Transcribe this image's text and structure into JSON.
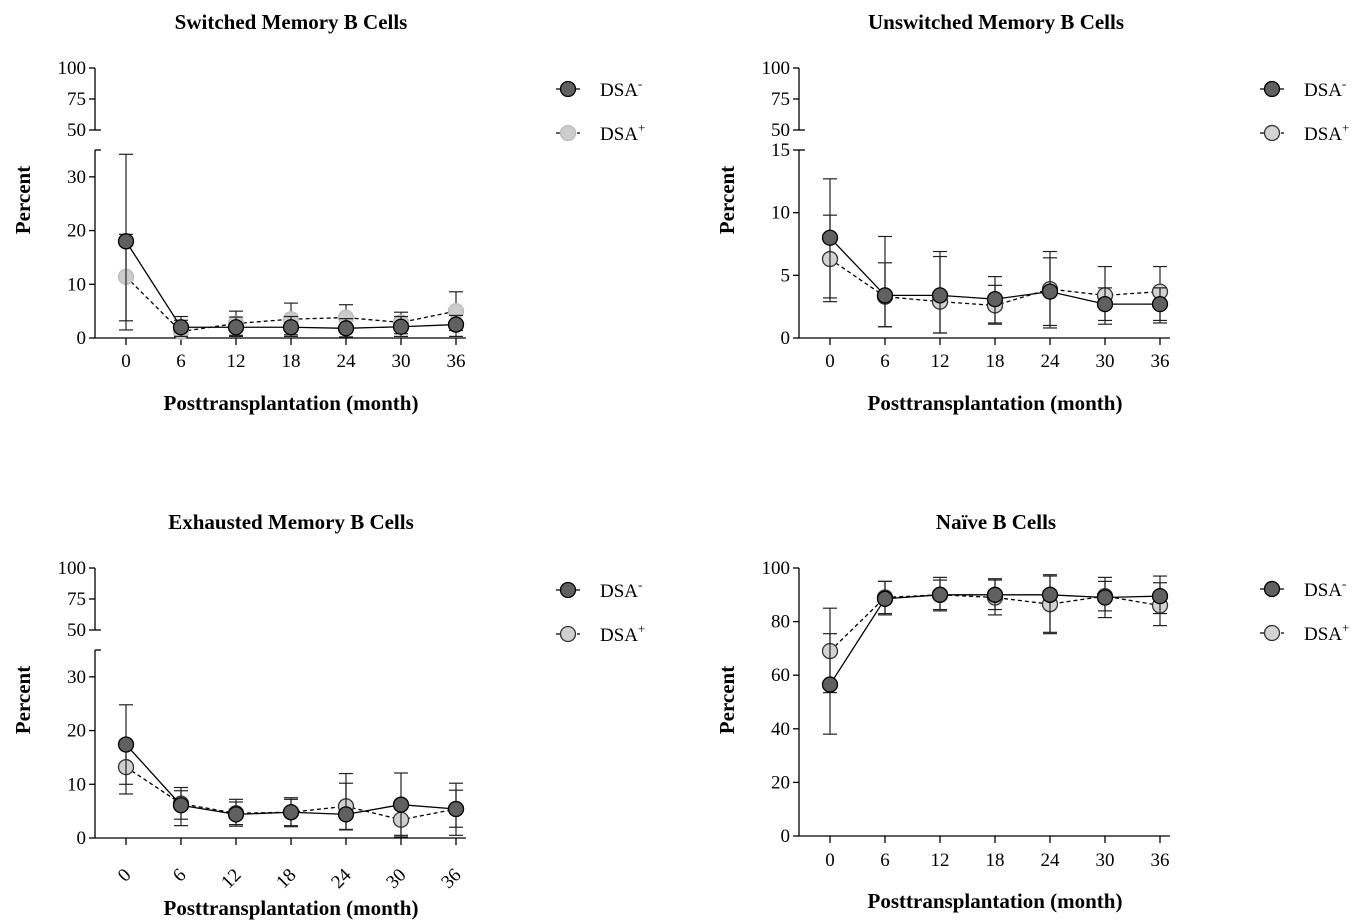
{
  "chart_data": [
    {
      "type": "line",
      "title": "Switched Memory B Cells",
      "xlabel": "Posttransplantation (month)",
      "ylabel": "Percent",
      "x": [
        0,
        6,
        12,
        18,
        24,
        30,
        36
      ],
      "xticklabels": [
        "0",
        "6",
        "12",
        "18",
        "24",
        "30",
        "36"
      ],
      "xtick_rotated": false,
      "y_axis_broken": true,
      "ylim_lower": [
        0,
        35
      ],
      "ylim_upper": [
        50,
        100
      ],
      "yticks_lower": [
        0,
        10,
        20,
        30
      ],
      "yticks_upper": [
        50,
        75,
        100
      ],
      "legend_position": "right",
      "series": [
        {
          "name": "DSA-",
          "name_base": "DSA",
          "name_sup": "-",
          "color": "#606060",
          "line": "solid",
          "values": [
            18.0,
            2.0,
            2.0,
            2.0,
            1.8,
            2.1,
            2.5
          ],
          "error": [
            [
              3.2,
              34.2
            ],
            [
              0.3,
              4.0
            ],
            [
              0.3,
              3.9
            ],
            [
              0.3,
              4.0
            ],
            [
              0.2,
              3.6
            ],
            [
              0.3,
              4.0
            ],
            [
              0.3,
              4.2
            ]
          ]
        },
        {
          "name": "DSA+",
          "name_base": "DSA",
          "name_sup": "+",
          "color": "#cccccc",
          "line": "dashed",
          "values": [
            11.4,
            1.2,
            2.7,
            3.5,
            3.8,
            2.9,
            5.0
          ],
          "error": [
            [
              1.5,
              19.3
            ],
            [
              0.2,
              3.3
            ],
            [
              0.5,
              5.0
            ],
            [
              0.6,
              6.5
            ],
            [
              1.2,
              6.2
            ],
            [
              0.8,
              4.8
            ],
            [
              1.4,
              8.6
            ]
          ]
        }
      ]
    },
    {
      "type": "line",
      "title": "Unswitched Memory B Cells",
      "xlabel": "Posttransplantation (month)",
      "ylabel": "Percent",
      "x": [
        0,
        6,
        12,
        18,
        24,
        30,
        36
      ],
      "xticklabels": [
        "0",
        "6",
        "12",
        "18",
        "24",
        "30",
        "36"
      ],
      "xtick_rotated": false,
      "y_axis_broken": true,
      "ylim_lower": [
        0,
        15
      ],
      "ylim_upper": [
        50,
        100
      ],
      "yticks_lower": [
        0,
        5,
        10,
        15
      ],
      "yticks_upper": [
        50,
        75,
        100
      ],
      "legend_position": "right",
      "series": [
        {
          "name": "DSA-",
          "name_base": "DSA",
          "name_sup": "-",
          "color": "#606060",
          "line": "solid",
          "values": [
            8.0,
            3.4,
            3.4,
            3.1,
            3.7,
            2.7,
            2.7
          ],
          "error": [
            [
              3.2,
              12.7
            ],
            [
              0.9,
              6.0
            ],
            [
              0.4,
              6.9
            ],
            [
              1.2,
              4.9
            ],
            [
              1.0,
              6.4
            ],
            [
              1.4,
              4.0
            ],
            [
              1.4,
              4.0
            ]
          ]
        },
        {
          "name": "DSA+",
          "name_base": "DSA",
          "name_sup": "+",
          "color": "#d3d3d3",
          "line": "dashed",
          "values": [
            6.3,
            3.3,
            2.9,
            2.6,
            3.9,
            3.4,
            3.7
          ],
          "error": [
            [
              2.9,
              9.8
            ],
            [
              0.9,
              8.1
            ],
            [
              0.4,
              6.5
            ],
            [
              1.1,
              4.2
            ],
            [
              0.8,
              6.9
            ],
            [
              1.1,
              5.7
            ],
            [
              1.2,
              5.7
            ]
          ]
        }
      ]
    },
    {
      "type": "line",
      "title": "Exhausted Memory B Cells",
      "xlabel": "Posttransplantation (month)",
      "ylabel": "Percent",
      "x": [
        0,
        6,
        12,
        18,
        24,
        30,
        36
      ],
      "xticklabels": [
        "0",
        "6",
        "12",
        "18",
        "24",
        "30",
        "36"
      ],
      "xtick_rotated": true,
      "y_axis_broken": true,
      "ylim_lower": [
        0,
        35
      ],
      "ylim_upper": [
        50,
        100
      ],
      "yticks_lower": [
        0,
        10,
        20,
        30
      ],
      "yticks_upper": [
        50,
        75,
        100
      ],
      "legend_position": "right",
      "series": [
        {
          "name": "DSA-",
          "name_base": "DSA",
          "name_sup": "-",
          "color": "#606060",
          "line": "solid",
          "values": [
            17.4,
            6.1,
            4.4,
            4.8,
            4.4,
            6.2,
            5.4
          ],
          "error": [
            [
              10.0,
              24.8
            ],
            [
              3.5,
              8.8
            ],
            [
              2.2,
              6.7
            ],
            [
              2.3,
              7.2
            ],
            [
              1.5,
              12.0
            ],
            [
              0.5,
              12.1
            ],
            [
              0.5,
              10.2
            ]
          ]
        },
        {
          "name": "DSA+",
          "name_base": "DSA",
          "name_sup": "+",
          "color": "#d0d0d0",
          "line": "dashed",
          "values": [
            13.2,
            6.4,
            4.6,
            4.8,
            5.9,
            3.4,
            5.4
          ],
          "error": [
            [
              8.2,
              18.2
            ],
            [
              2.3,
              9.4
            ],
            [
              2.5,
              7.2
            ],
            [
              2.1,
              7.5
            ],
            [
              1.6,
              10.2
            ],
            [
              0.2,
              6.8
            ],
            [
              2.0,
              8.9
            ]
          ]
        }
      ]
    },
    {
      "type": "line",
      "title": "Naïve B Cells",
      "xlabel": "Posttransplantation (month)",
      "ylabel": "Percent",
      "x": [
        0,
        6,
        12,
        18,
        24,
        30,
        36
      ],
      "xticklabels": [
        "0",
        "6",
        "12",
        "18",
        "24",
        "30",
        "36"
      ],
      "xtick_rotated": false,
      "y_axis_broken": false,
      "ylim": [
        0,
        100
      ],
      "yticks": [
        0,
        20,
        40,
        60,
        80,
        100
      ],
      "legend_position": "right",
      "series": [
        {
          "name": "DSA-",
          "name_base": "DSA",
          "name_sup": "-",
          "color": "#606060",
          "line": "solid",
          "values": [
            56.5,
            88.5,
            90.0,
            90.0,
            90.0,
            89.0,
            89.5
          ],
          "error": [
            [
              38.0,
              75.5
            ],
            [
              82.5,
              95.0
            ],
            [
              84.0,
              96.5
            ],
            [
              84.5,
              96.0
            ],
            [
              75.5,
              97.0
            ],
            [
              81.5,
              96.5
            ],
            [
              83.0,
              94.5
            ]
          ]
        },
        {
          "name": "DSA+",
          "name_base": "DSA",
          "name_sup": "+",
          "color": "#d3d3d3",
          "line": "dashed",
          "values": [
            69.0,
            89.0,
            90.0,
            89.0,
            86.5,
            89.5,
            86.0
          ],
          "error": [
            [
              53.5,
              85.0
            ],
            [
              83.0,
              95.0
            ],
            [
              84.5,
              95.5
            ],
            [
              82.5,
              95.5
            ],
            [
              76.0,
              97.5
            ],
            [
              84.0,
              95.0
            ],
            [
              78.5,
              97.0
            ]
          ]
        }
      ]
    }
  ]
}
